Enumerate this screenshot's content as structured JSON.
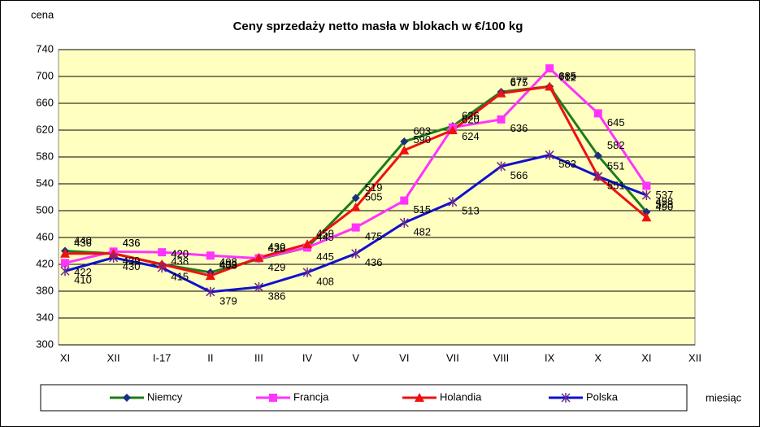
{
  "chart_data": {
    "type": "line",
    "title": "Ceny sprzedaży netto masła w blokach w €/100 kg",
    "y_label": "cena",
    "x_label": "miesiąc",
    "categories": [
      "XI",
      "XII",
      "I-17",
      "II",
      "III",
      "IV",
      "V",
      "VI",
      "VII",
      "VIII",
      "IX",
      "X",
      "XI",
      "XII"
    ],
    "series": [
      {
        "name": "Niemcy",
        "color": "#1e7b1e",
        "marker": "diamond",
        "marker_color": "#1a2f80",
        "values": [
          440,
          436,
          420,
          408,
          428,
          445,
          519,
          603,
          626,
          677,
          685,
          582,
          498,
          null
        ]
      },
      {
        "name": "Francja",
        "color": "#ff33ff",
        "marker": "square",
        "marker_color": "#ff33ff",
        "values": [
          422,
          439,
          438,
          433,
          429,
          445,
          475,
          515,
          624,
          636,
          712,
          645,
          537,
          null
        ]
      },
      {
        "name": "Holandia",
        "color": "#ee1111",
        "marker": "triangle",
        "marker_color": "#ee1111",
        "values": [
          436,
          436,
          420,
          403,
          430,
          450,
          505,
          590,
          620,
          675,
          685,
          551,
          490,
          null
        ]
      },
      {
        "name": "Polska",
        "color": "#1111cc",
        "marker": "star",
        "marker_color": "#6a2a8a",
        "values": [
          410,
          430,
          415,
          379,
          386,
          408,
          436,
          482,
          513,
          566,
          583,
          551,
          523,
          null
        ]
      }
    ],
    "ylim": [
      300,
      740
    ],
    "yticks": [
      300,
      340,
      380,
      420,
      460,
      500,
      540,
      580,
      620,
      660,
      700,
      740
    ],
    "grid": true
  }
}
